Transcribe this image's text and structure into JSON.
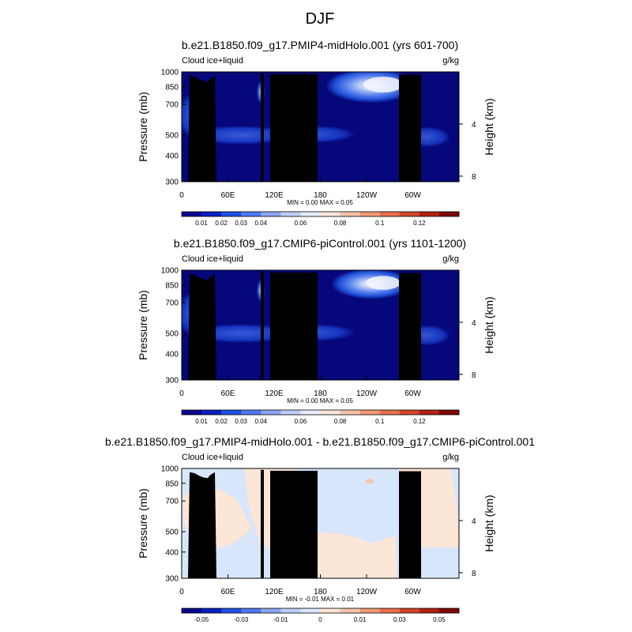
{
  "figure_title": "DJF",
  "chart_data": [
    {
      "type": "heatmap",
      "title": "b.e21.B1850.f09_g17.PMIP4-midHolo.001 (yrs 601-700)",
      "variable": "Cloud ice+liquid",
      "units": "g/kg",
      "ylabel": "Pressure (mb)",
      "ylabel_right": "Height (km)",
      "x_ticks": [
        "0",
        "60E",
        "120E",
        "180",
        "120W",
        "60W"
      ],
      "x_tick_degrees": [
        0,
        60,
        120,
        180,
        240,
        300
      ],
      "xlim": [
        0,
        360
      ],
      "y_ticks": [
        300,
        400,
        500,
        700,
        850,
        1000
      ],
      "ylim": [
        1000,
        300
      ],
      "y_scale": "log",
      "height_ticks": [
        "8",
        "4"
      ],
      "height_km_values": [
        8,
        4
      ],
      "stats": "MIN =   0.00  MAX =   0.05",
      "min": 0.0,
      "max": 0.05,
      "colorbar": {
        "ticks": [
          "0.01",
          "0.02",
          "0.03",
          "0.04",
          "0.06",
          "0.08",
          "0.1",
          "0.12"
        ],
        "colors": [
          "#08088f",
          "#0a1fc0",
          "#1e50e6",
          "#5078f0",
          "#8ca5f5",
          "#bdcef8",
          "#e6ecfb",
          "#fbe6dc",
          "#f6c3a8",
          "#f09a76",
          "#e8704c",
          "#d2452a",
          "#b22214",
          "#7d0a05"
        ]
      },
      "background_color": "#05077a"
    },
    {
      "type": "heatmap",
      "title": "b.e21.B1850.f09_g17.CMIP6-piControl.001 (yrs 1101-1200)",
      "variable": "Cloud ice+liquid",
      "units": "g/kg",
      "ylabel": "Pressure (mb)",
      "ylabel_right": "Height (km)",
      "x_ticks": [
        "0",
        "60E",
        "120E",
        "180",
        "120W",
        "60W"
      ],
      "x_tick_degrees": [
        0,
        60,
        120,
        180,
        240,
        300
      ],
      "xlim": [
        0,
        360
      ],
      "y_ticks": [
        300,
        400,
        500,
        700,
        850,
        1000
      ],
      "ylim": [
        1000,
        300
      ],
      "y_scale": "log",
      "height_ticks": [
        "8",
        "4"
      ],
      "height_km_values": [
        8,
        4
      ],
      "stats": "MIN =   0.00  MAX =   0.05",
      "min": 0.0,
      "max": 0.05,
      "colorbar": {
        "ticks": [
          "0.01",
          "0.02",
          "0.03",
          "0.04",
          "0.06",
          "0.08",
          "0.1",
          "0.12"
        ],
        "colors": [
          "#08088f",
          "#0a1fc0",
          "#1e50e6",
          "#5078f0",
          "#8ca5f5",
          "#bdcef8",
          "#e6ecfb",
          "#fbe6dc",
          "#f6c3a8",
          "#f09a76",
          "#e8704c",
          "#d2452a",
          "#b22214",
          "#7d0a05"
        ]
      },
      "background_color": "#05077a"
    },
    {
      "type": "heatmap",
      "title": "b.e21.B1850.f09_g17.PMIP4-midHolo.001 - b.e21.B1850.f09_g17.CMIP6-piControl.001",
      "variable": "Cloud ice+liquid",
      "units": "g/kg",
      "ylabel": "Pressure (mb)",
      "ylabel_right": "Height (km)",
      "x_ticks": [
        "0",
        "60E",
        "120E",
        "180",
        "120W",
        "60W"
      ],
      "x_tick_degrees": [
        0,
        60,
        120,
        180,
        240,
        300
      ],
      "xlim": [
        0,
        360
      ],
      "y_ticks": [
        300,
        400,
        500,
        700,
        850,
        1000
      ],
      "ylim": [
        1000,
        300
      ],
      "y_scale": "log",
      "height_ticks": [
        "8",
        "4"
      ],
      "height_km_values": [
        8,
        4
      ],
      "stats": "MIN =  -0.01  MAX =   0.01",
      "min": -0.01,
      "max": 0.01,
      "colorbar": {
        "ticks": [
          "-0.05",
          "-0.03",
          "-0.01",
          "0",
          "0.01",
          "0.03",
          "0.05"
        ],
        "colors": [
          "#08088f",
          "#0a1fc0",
          "#1e50e6",
          "#5078f0",
          "#8ca5f5",
          "#bdcef8",
          "#d8e6fb",
          "#fce6d6",
          "#f6c3a8",
          "#f09a76",
          "#e8704c",
          "#d2452a",
          "#b22214",
          "#7d0a05"
        ]
      },
      "background_color": "#d8e6fb"
    }
  ]
}
